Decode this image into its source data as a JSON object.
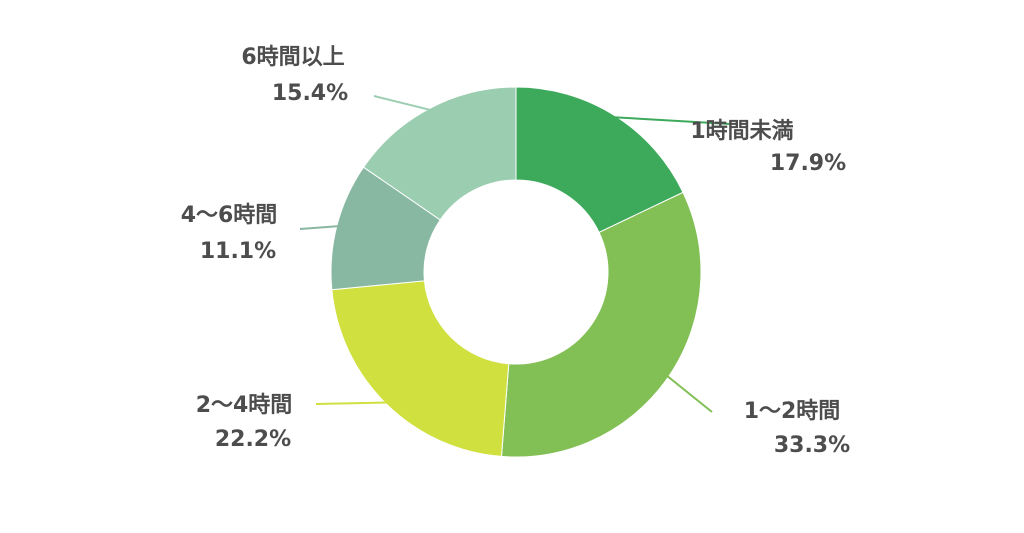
{
  "chart_data": {
    "type": "pie",
    "donut": true,
    "categories": [
      "1時間未満",
      "1〜2時間",
      "2〜4時間",
      "4〜6時間",
      "6時間以上"
    ],
    "values": [
      17.9,
      33.3,
      22.2,
      11.1,
      15.4
    ],
    "value_labels": [
      "17.9%",
      "33.3%",
      "22.2%",
      "11.1%",
      "15.4%"
    ],
    "colors": [
      "#3daa5b",
      "#82bf55",
      "#cfe03f",
      "#88b8a2",
      "#9bcdb0"
    ],
    "legend": "none"
  }
}
